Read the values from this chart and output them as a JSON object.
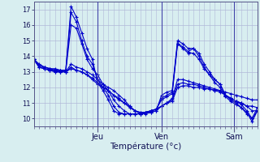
{
  "xlabel": "Température (°c)",
  "bg_color": "#d8eef0",
  "grid_color": "#b0b8d8",
  "line_color": "#0000cc",
  "ylim": [
    9.5,
    17.5
  ],
  "yticks": [
    10,
    11,
    12,
    13,
    14,
    15,
    16,
    17
  ],
  "day_labels": [
    "Jeu",
    "Ven",
    "Sam"
  ],
  "day_positions": [
    0.285,
    0.572,
    0.895
  ],
  "series": [
    [
      13.8,
      13.5,
      13.3,
      13.2,
      13.2,
      13.1,
      13.1,
      17.2,
      16.5,
      15.5,
      14.5,
      13.8,
      12.3,
      11.8,
      11.2,
      10.5,
      10.3,
      10.3,
      10.3,
      10.3,
      10.3,
      10.4,
      10.4,
      10.5,
      11.5,
      11.7,
      11.8,
      15.0,
      14.8,
      14.5,
      14.5,
      14.2,
      13.5,
      13.0,
      12.5,
      12.2,
      11.5,
      11.2,
      11.0,
      10.7,
      10.3,
      10.0,
      10.7
    ],
    [
      13.8,
      13.4,
      13.3,
      13.2,
      13.1,
      13.1,
      13.1,
      16.8,
      16.2,
      15.0,
      14.0,
      13.5,
      12.5,
      12.0,
      11.5,
      10.8,
      10.4,
      10.3,
      10.3,
      10.3,
      10.3,
      10.4,
      10.5,
      10.6,
      11.3,
      11.5,
      11.7,
      14.8,
      14.6,
      14.3,
      14.5,
      14.0,
      13.3,
      12.8,
      12.3,
      12.0,
      11.4,
      11.1,
      10.9,
      10.7,
      10.4,
      9.8,
      10.5
    ],
    [
      13.8,
      13.4,
      13.3,
      13.2,
      13.1,
      13.1,
      13.0,
      16.0,
      15.8,
      14.8,
      13.8,
      13.2,
      12.8,
      12.2,
      11.8,
      11.2,
      10.8,
      10.5,
      10.3,
      10.3,
      10.3,
      10.4,
      10.5,
      10.6,
      11.2,
      11.4,
      11.6,
      14.8,
      14.5,
      14.2,
      14.2,
      13.8,
      13.2,
      12.8,
      12.5,
      12.2,
      11.5,
      11.3,
      11.1,
      10.9,
      10.5,
      10.0,
      10.5
    ],
    [
      13.8,
      13.3,
      13.2,
      13.1,
      13.1,
      13.0,
      13.0,
      13.5,
      13.3,
      13.2,
      13.0,
      12.8,
      12.5,
      12.2,
      12.0,
      11.8,
      11.5,
      11.2,
      10.8,
      10.5,
      10.3,
      10.3,
      10.4,
      10.5,
      10.8,
      11.0,
      11.3,
      12.5,
      12.5,
      12.4,
      12.3,
      12.2,
      12.1,
      12.0,
      11.9,
      11.8,
      11.5,
      11.3,
      11.1,
      11.0,
      10.8,
      10.5,
      10.5
    ],
    [
      13.8,
      13.3,
      13.2,
      13.1,
      13.0,
      13.0,
      13.0,
      13.3,
      13.1,
      13.0,
      12.8,
      12.6,
      12.3,
      12.0,
      11.8,
      11.5,
      11.2,
      11.0,
      10.7,
      10.5,
      10.4,
      10.4,
      10.5,
      10.6,
      10.8,
      11.0,
      11.2,
      12.2,
      12.3,
      12.2,
      12.2,
      12.1,
      12.0,
      11.9,
      11.8,
      11.7,
      11.5,
      11.3,
      11.1,
      11.0,
      10.8,
      10.8,
      10.7
    ],
    [
      13.8,
      13.3,
      13.2,
      13.1,
      13.0,
      13.0,
      13.0,
      13.2,
      13.1,
      13.0,
      12.8,
      12.5,
      12.2,
      12.0,
      11.8,
      11.5,
      11.3,
      11.0,
      10.8,
      10.5,
      10.4,
      10.4,
      10.5,
      10.6,
      10.8,
      11.0,
      11.1,
      12.0,
      12.1,
      12.1,
      12.0,
      12.0,
      11.9,
      11.9,
      11.8,
      11.8,
      11.7,
      11.6,
      11.5,
      11.4,
      11.3,
      11.2,
      11.2
    ]
  ]
}
